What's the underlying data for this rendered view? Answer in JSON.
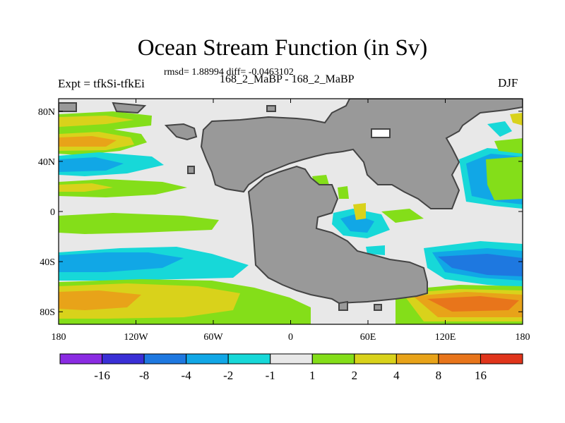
{
  "figure": {
    "title": "Ocean Stream Function (in Sv)",
    "stats_line": "rmsd= 1.88994 diff= -0.0463102",
    "left_label": "Expt = tfkSi-tfkEi",
    "center_label": "168_2_MaBP - 168_2_MaBP",
    "right_label": "DJF"
  },
  "map": {
    "x_ticks": [
      {
        "lon": -180,
        "label": "180"
      },
      {
        "lon": -120,
        "label": "120W"
      },
      {
        "lon": -60,
        "label": "60W"
      },
      {
        "lon": 0,
        "label": "0"
      },
      {
        "lon": 60,
        "label": "60E"
      },
      {
        "lon": 120,
        "label": "120E"
      },
      {
        "lon": 180,
        "label": "180"
      }
    ],
    "y_ticks": [
      {
        "lat": 80,
        "label": "80N"
      },
      {
        "lat": 40,
        "label": "40N"
      },
      {
        "lat": 0,
        "label": "0"
      },
      {
        "lat": -40,
        "label": "40S"
      },
      {
        "lat": -80,
        "label": "80S"
      }
    ],
    "lon_range": [
      -180,
      180
    ],
    "lat_range": [
      -90,
      90
    ],
    "land_color": "#999999",
    "coast_color": "#444444",
    "ocean_background": "#e8e8e8"
  },
  "colorbar": {
    "colors": [
      "#8a2be2",
      "#3a2fd6",
      "#1e78e0",
      "#11a7e6",
      "#17d8d8",
      "#e8e8e8",
      "#84de19",
      "#d9d21b",
      "#e8a319",
      "#e8751b",
      "#e0351b"
    ],
    "labels": [
      "-16",
      "-8",
      "-4",
      "-2",
      "-1",
      "1",
      "2",
      "4",
      "8",
      "16"
    ]
  }
}
